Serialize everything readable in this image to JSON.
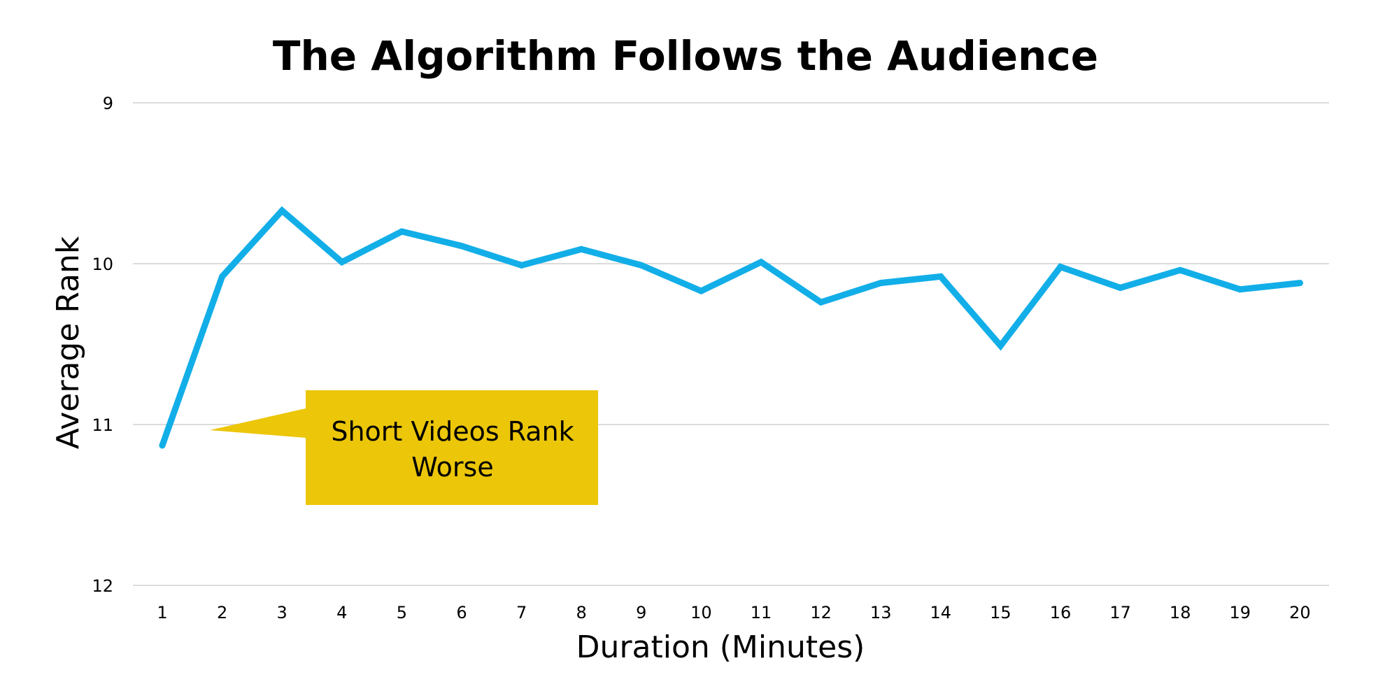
{
  "chart_data": {
    "type": "line",
    "title": "The Algorithm Follows the Audience",
    "xlabel": "Duration (Minutes)",
    "ylabel": "Average Rank",
    "x": [
      1,
      2,
      3,
      4,
      5,
      6,
      7,
      8,
      9,
      10,
      11,
      12,
      13,
      14,
      15,
      16,
      17,
      18,
      19,
      20
    ],
    "series": [
      {
        "values": [
          11.13,
          10.08,
          9.67,
          9.99,
          9.8,
          9.89,
          10.01,
          9.91,
          10.01,
          10.17,
          9.99,
          10.24,
          10.12,
          10.08,
          10.51,
          10.02,
          10.15,
          10.04,
          10.16,
          10.12
        ]
      }
    ],
    "ylim": [
      9,
      12
    ],
    "y_inverted": true,
    "yticks": [
      9,
      10,
      11,
      12
    ],
    "grid": true,
    "line_color": "#12aee8",
    "annotation": {
      "lines": [
        "Short Videos Rank",
        "Worse"
      ],
      "color": "#ecc608",
      "points_to_x": 1
    }
  }
}
